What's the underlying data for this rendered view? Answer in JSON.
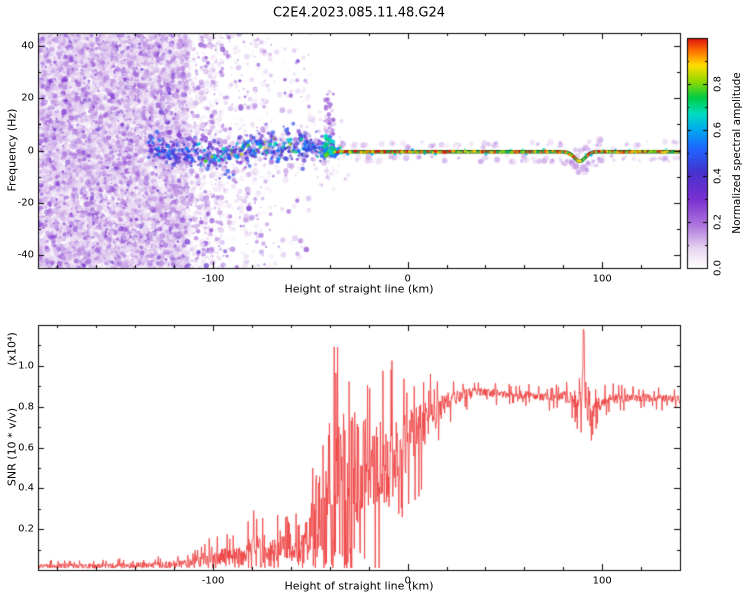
{
  "title": "C2E4.2023.085.11.48.G24",
  "labels": {
    "xlabel": "Height of straight line (km)",
    "top_ylabel": "Frequency (Hz)",
    "bottom_ylabel": "SNR (10 * v/v)",
    "bottom_scale": "(x10⁴)",
    "colorbar_label": "Normalized spectral amplitude"
  },
  "chart_data": [
    {
      "type": "heatmap",
      "panel": "top",
      "title": "C2E4.2023.085.11.48.G24",
      "xlabel": "Height of straight line (km)",
      "ylabel": "Frequency (Hz)",
      "xlim": [
        -190,
        140
      ],
      "ylim": [
        -45,
        45
      ],
      "grid": false,
      "xticks": {
        "major": [
          {
            "v": -100,
            "label": "-100"
          },
          {
            "v": 0,
            "label": "0"
          },
          {
            "v": 100,
            "label": "100"
          }
        ],
        "minor_step": 20
      },
      "yticks": {
        "major": [
          {
            "v": 40,
            "label": "40"
          },
          {
            "v": 20,
            "label": "20"
          },
          {
            "v": 0,
            "label": "0"
          },
          {
            "v": -20,
            "label": "-20"
          },
          {
            "v": -40,
            "label": "-40"
          }
        ],
        "minor_step": 10
      },
      "colormap": [
        {
          "v": 0.0,
          "c": "#ffffff"
        },
        {
          "v": 0.08,
          "c": "#ead9f2"
        },
        {
          "v": 0.18,
          "c": "#b07ade"
        },
        {
          "v": 0.3,
          "c": "#7a2fd0"
        },
        {
          "v": 0.42,
          "c": "#4433cf"
        },
        {
          "v": 0.52,
          "c": "#1f66ff"
        },
        {
          "v": 0.6,
          "c": "#00a8f0"
        },
        {
          "v": 0.67,
          "c": "#00ddc0"
        },
        {
          "v": 0.74,
          "c": "#00cc44"
        },
        {
          "v": 0.81,
          "c": "#8fd900"
        },
        {
          "v": 0.88,
          "c": "#ffdd00"
        },
        {
          "v": 0.94,
          "c": "#ff7700"
        },
        {
          "v": 1.0,
          "c": "#dd1111"
        }
      ],
      "colorbar": {
        "label": "Normalized spectral amplitude",
        "range": [
          0,
          1
        ],
        "ticks": [
          {
            "v": 0.0,
            "label": "0.0"
          },
          {
            "v": 0.2,
            "label": "0.2"
          },
          {
            "v": 0.4,
            "label": "0.4"
          },
          {
            "v": 0.6,
            "label": "0.6"
          },
          {
            "v": 0.8,
            "label": "0.8"
          }
        ]
      },
      "features": {
        "noise_field": {
          "x_range": [
            -190,
            -50
          ],
          "dense_until": -113,
          "medium_until": -95,
          "value_range": [
            0.04,
            0.38
          ]
        },
        "scatter_band": {
          "x_range": [
            -133,
            -42
          ],
          "center_freq": 0,
          "core_spread_hz": 2.2,
          "halo_spread_hz": 4.5,
          "core_values": [
            0.35,
            0.8
          ]
        },
        "plume": {
          "x": -40,
          "top_hz": 28
        },
        "secondary_plume": {
          "x": -52,
          "top_hz": 13
        },
        "echo_line": {
          "x_range": [
            -42,
            140
          ],
          "freq": -0.5,
          "dip": {
            "x": 88.5,
            "depth_hz": 3.6
          },
          "core_values": [
            0.8,
            1.0
          ]
        }
      }
    },
    {
      "type": "line",
      "panel": "bottom",
      "xlabel": "Height of straight line (km)",
      "ylabel": "SNR (10 * v/v)",
      "y_scale": "(x10⁴)",
      "xlim": [
        -190,
        140
      ],
      "ylim": [
        0,
        1.2
      ],
      "grid": false,
      "xticks": {
        "major": [
          {
            "v": -100,
            "label": "-100"
          },
          {
            "v": 0,
            "label": "0"
          },
          {
            "v": 100,
            "label": "100"
          }
        ],
        "minor_step": 20
      },
      "yticks": {
        "major": [
          {
            "v": 0.2,
            "label": "0.2"
          },
          {
            "v": 0.4,
            "label": "0.4"
          },
          {
            "v": 0.6,
            "label": "0.6"
          },
          {
            "v": 0.8,
            "label": "0.8"
          },
          {
            "v": 1.0,
            "label": "1.0"
          }
        ],
        "minor_step": 0.1
      },
      "series": [
        {
          "name": "SNR",
          "color": "#ee3c3c"
        }
      ],
      "envelope": [
        [
          -190,
          0.02,
          0.012
        ],
        [
          -160,
          0.02,
          0.012
        ],
        [
          -130,
          0.025,
          0.015
        ],
        [
          -115,
          0.03,
          0.02
        ],
        [
          -105,
          0.05,
          0.035
        ],
        [
          -95,
          0.06,
          0.045
        ],
        [
          -85,
          0.07,
          0.06
        ],
        [
          -78,
          0.09,
          0.09
        ],
        [
          -72,
          0.07,
          0.05
        ],
        [
          -66,
          0.1,
          0.1
        ],
        [
          -60,
          0.08,
          0.06
        ],
        [
          -55,
          0.1,
          0.08
        ],
        [
          -50,
          0.18,
          0.14
        ],
        [
          -46,
          0.3,
          0.22
        ],
        [
          -43,
          0.22,
          0.18
        ],
        [
          -40,
          0.5,
          0.28
        ],
        [
          -37,
          0.35,
          0.26
        ],
        [
          -34,
          0.6,
          0.25
        ],
        [
          -31,
          0.4,
          0.28
        ],
        [
          -28,
          0.55,
          0.26
        ],
        [
          -25,
          0.45,
          0.25
        ],
        [
          -22,
          0.55,
          0.22
        ],
        [
          -18,
          0.5,
          0.22
        ],
        [
          -14,
          0.55,
          0.2
        ],
        [
          -10,
          0.5,
          0.2
        ],
        [
          -6,
          0.58,
          0.18
        ],
        [
          -2,
          0.6,
          0.16
        ],
        [
          2,
          0.66,
          0.14
        ],
        [
          6,
          0.7,
          0.12
        ],
        [
          10,
          0.72,
          0.1
        ],
        [
          14,
          0.76,
          0.08
        ],
        [
          18,
          0.8,
          0.06
        ],
        [
          22,
          0.83,
          0.045
        ],
        [
          26,
          0.85,
          0.035
        ],
        [
          30,
          0.865,
          0.03
        ],
        [
          40,
          0.87,
          0.022
        ],
        [
          55,
          0.86,
          0.02
        ],
        [
          70,
          0.85,
          0.022
        ],
        [
          80,
          0.85,
          0.028
        ],
        [
          85,
          0.84,
          0.04
        ],
        [
          88,
          0.83,
          0.06
        ],
        [
          90,
          0.85,
          0.06
        ],
        [
          92,
          0.78,
          0.07
        ],
        [
          94,
          0.74,
          0.05
        ],
        [
          97,
          0.8,
          0.04
        ],
        [
          102,
          0.84,
          0.03
        ],
        [
          115,
          0.845,
          0.022
        ],
        [
          130,
          0.84,
          0.02
        ],
        [
          140,
          0.835,
          0.02
        ]
      ],
      "spike": {
        "x": 90.5,
        "peak": 1.16
      },
      "burst_region": {
        "x_range": [
          -52,
          -22
        ],
        "valley_prob": 0.25
      }
    }
  ]
}
